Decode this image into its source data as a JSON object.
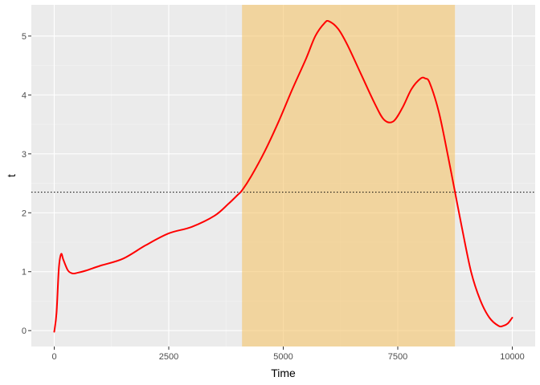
{
  "chart_data": {
    "type": "line",
    "title": "",
    "xlabel": "Time",
    "ylabel": "t",
    "xlim": [
      -500,
      10500
    ],
    "ylim": [
      -0.27,
      5.53
    ],
    "x_ticks": [
      0,
      2500,
      5000,
      7500,
      10000
    ],
    "x_tick_labels": [
      "0",
      "2500",
      "5000",
      "7500",
      "10000"
    ],
    "y_ticks": [
      0,
      1,
      2,
      3,
      4,
      5
    ],
    "y_tick_labels": [
      "0",
      "1",
      "2",
      "3",
      "4",
      "5"
    ],
    "grid": true,
    "legend": "none",
    "threshold": 2.35,
    "highlight_region": {
      "x_start": 4100,
      "x_end": 8750
    },
    "colors": {
      "panel": "#ebebeb",
      "grid_major": "#ffffff",
      "grid_minor": "#f4f4f4",
      "line": "#ff0000",
      "highlight": "#f5c46b",
      "threshold_line": "#000000"
    },
    "series": [
      {
        "x": [
          0,
          50,
          100,
          150,
          200,
          300,
          400,
          500,
          700,
          1000,
          1500,
          2000,
          2500,
          3000,
          3500,
          3800,
          4000,
          4100,
          4300,
          4600,
          4900,
          5200,
          5500,
          5700,
          5900,
          6000,
          6200,
          6400,
          6700,
          7000,
          7200,
          7400,
          7600,
          7800,
          8000,
          8100,
          8200,
          8400,
          8600,
          8750,
          8900,
          9100,
          9300,
          9500,
          9700,
          9800,
          9900,
          10000
        ],
        "y": [
          -0.02,
          0.3,
          1.05,
          1.3,
          1.2,
          1.02,
          0.97,
          0.98,
          1.02,
          1.1,
          1.22,
          1.45,
          1.65,
          1.76,
          1.95,
          2.15,
          2.3,
          2.38,
          2.62,
          3.05,
          3.55,
          4.1,
          4.62,
          5.0,
          5.22,
          5.25,
          5.12,
          4.85,
          4.35,
          3.85,
          3.58,
          3.55,
          3.78,
          4.1,
          4.28,
          4.28,
          4.2,
          3.7,
          2.95,
          2.35,
          1.75,
          1.0,
          0.52,
          0.22,
          0.08,
          0.08,
          0.12,
          0.22
        ]
      }
    ]
  }
}
